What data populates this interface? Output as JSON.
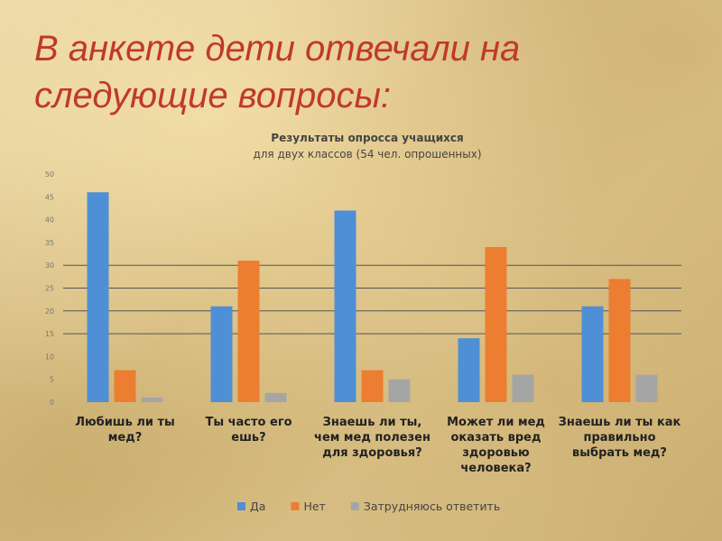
{
  "slide": {
    "title": "В анкете дети отвечали на следующие вопросы:"
  },
  "chart_data": {
    "type": "bar",
    "title": "Результаты опросса учащихся",
    "subtitle": "для двух классов (54 чел. опрошенных)",
    "ylim": [
      0,
      50
    ],
    "yticks": [
      "0",
      "5",
      "10",
      "15",
      "20",
      "25",
      "30",
      "35",
      "40",
      "45",
      "50"
    ],
    "categories": [
      [
        "Любишь ли ты",
        "мед?"
      ],
      [
        "Ты часто его",
        "ешь?"
      ],
      [
        "Знаешь ли ты,",
        "чем мед полезен",
        "для здоровья?"
      ],
      [
        "Может ли мед",
        "оказать вред",
        "здоровью",
        "человека?"
      ],
      [
        "Знаешь ли ты как",
        "правильно",
        "выбрать мед?"
      ]
    ],
    "series": [
      {
        "name": "Да",
        "color": "#4f8fd6",
        "values": [
          46,
          21,
          42,
          14,
          21
        ]
      },
      {
        "name": "Нет",
        "color": "#ed7d31",
        "values": [
          7,
          31,
          7,
          34,
          27
        ]
      },
      {
        "name": "Затрудняюсь ответить",
        "color": "#a5a5a5",
        "values": [
          1,
          2,
          5,
          6,
          6
        ]
      }
    ],
    "grid": true,
    "legend_position": "bottom"
  }
}
